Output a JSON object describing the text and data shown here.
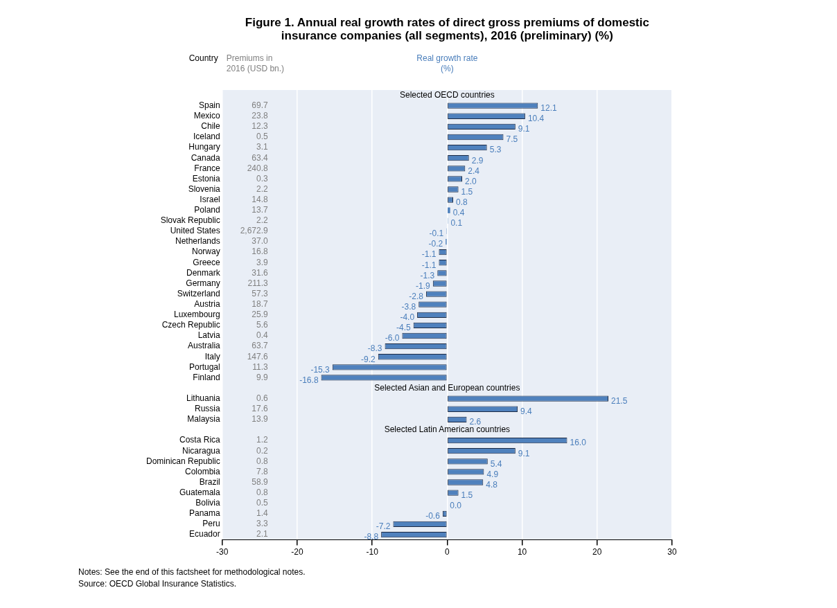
{
  "chart_data": {
    "type": "bar",
    "orientation": "horizontal",
    "title": "Figure 1. Annual real growth rates of direct gross premiums of domestic insurance companies (all segments), 2016 (preliminary) (%)",
    "ylabel": "Country",
    "xlabel": "Real growth rate (%)",
    "categories": [
      null,
      "Spain",
      "Mexico",
      "Chile",
      "Iceland",
      "Hungary",
      "Canada",
      "France",
      "Estonia",
      "Slovenia",
      "Israel",
      "Poland",
      "Slovak Republic",
      "United States",
      "Netherlands",
      "Norway",
      "Greece",
      "Denmark",
      "Germany",
      "Switzerland",
      "Austria",
      "Luxembourg",
      "Czech Republic",
      "Latvia",
      "Australia",
      "Italy",
      "Portugal",
      "Finland",
      null,
      "Lithuania",
      "Russia",
      "Malaysia",
      null,
      "Costa Rica",
      "Nicaragua",
      "Dominican Republic",
      "Colombia",
      "Brazil",
      "Guatemala",
      "Bolivia",
      "Panama",
      "Peru",
      "Ecuador"
    ],
    "values": [
      null,
      12.1,
      10.4,
      9.1,
      7.5,
      5.3,
      2.9,
      2.4,
      2.0,
      1.5,
      0.8,
      0.4,
      0.1,
      -0.1,
      -0.2,
      -1.1,
      -1.1,
      -1.3,
      -1.9,
      -2.8,
      -3.8,
      -4.0,
      -4.5,
      -6.0,
      -8.3,
      -9.2,
      -15.3,
      -16.8,
      null,
      21.5,
      9.4,
      2.6,
      null,
      16.0,
      9.1,
      5.4,
      4.9,
      4.8,
      1.5,
      0.0,
      -0.6,
      -7.2,
      -8.8
    ],
    "value_labels": [
      null,
      "12.1",
      "10.4",
      "9.1",
      "7.5",
      "5.3",
      "2.9",
      "2.4",
      "2.0",
      "1.5",
      "0.8",
      "0.4",
      "0.1",
      "-0.1",
      "-0.2",
      "-1.1",
      "-1.1",
      "-1.3",
      "-1.9",
      "-2.8",
      "-3.8",
      "-4.0",
      "-4.5",
      "-6.0",
      "-8.3",
      "-9.2",
      "-15.3",
      "-16.8",
      null,
      "21.5",
      "9.4",
      "2.6",
      null,
      "16.0",
      "9.1",
      "5.4",
      "4.9",
      "4.8",
      "1.5",
      "0.0",
      "-0.6",
      "-7.2",
      "-8.8"
    ],
    "color": "#4f81bd",
    "xlim": [
      -30,
      30
    ],
    "xticks": [
      -30,
      -20,
      -10,
      0,
      10,
      20,
      30
    ],
    "grid": "x",
    "annotations": [
      "Selected OECD countries",
      "Selected Asian and European countries",
      "Selected Latin American countries",
      "Premiums in 2016 (USD bn.)",
      "Notes: See the end of this factsheet for methodological notes.",
      "Source: OECD Global Insurance Statistics.",
      "69.7",
      "23.8",
      "12.3",
      "0.5",
      "3.1",
      "63.4",
      "240.8",
      "0.3",
      "2.2",
      "14.8",
      "13.7",
      "2.2",
      "2,672.9",
      "37.0",
      "16.8",
      "3.9",
      "31.6",
      "211.3",
      "57.3",
      "18.7",
      "25.9",
      "5.6",
      "0.4",
      "63.7",
      "147.6",
      "11.3",
      "9.9",
      "0.6",
      "17.6",
      "13.9",
      "1.2",
      "0.2",
      "0.8",
      "7.8",
      "58.9",
      "0.8",
      "0.5",
      "1.4",
      "3.3",
      "2.1"
    ]
  }
}
